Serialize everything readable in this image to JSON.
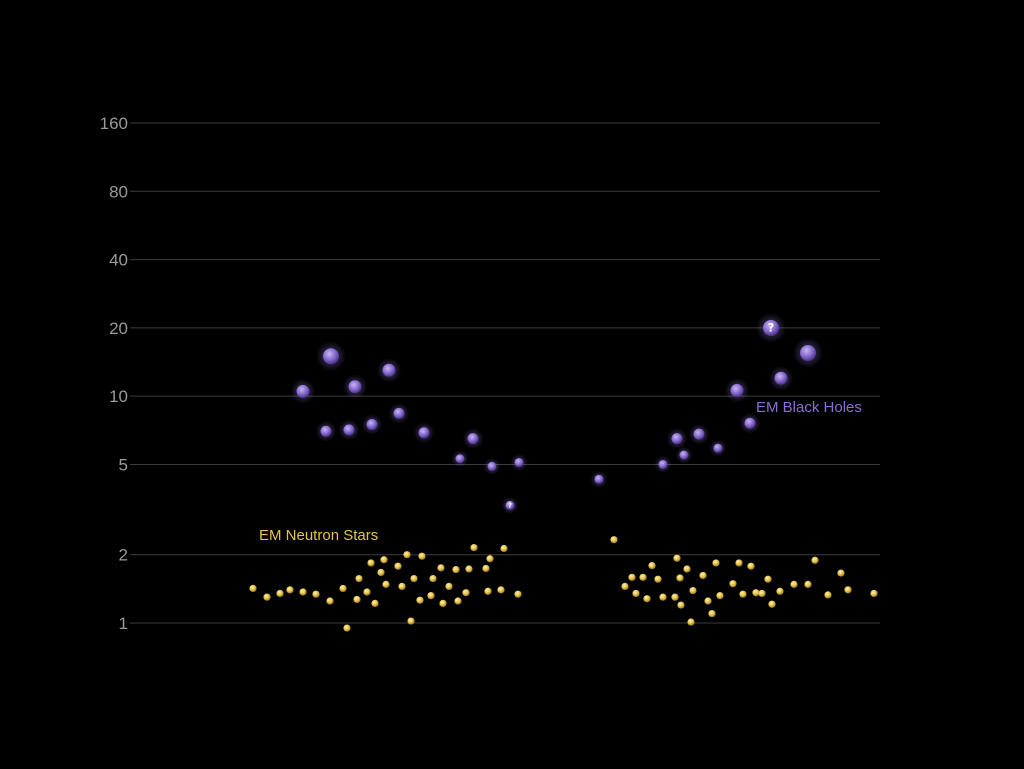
{
  "chart_data": {
    "type": "scatter",
    "title": "",
    "xlabel": "",
    "ylabel": "",
    "y_scale": "log",
    "ylim": [
      1,
      160
    ],
    "y_ticks": [
      {
        "value": 1,
        "label": "1"
      },
      {
        "value": 2,
        "label": "2"
      },
      {
        "value": 5,
        "label": "5"
      },
      {
        "value": 10,
        "label": "10"
      },
      {
        "value": 20,
        "label": "20"
      },
      {
        "value": 40,
        "label": "40"
      },
      {
        "value": 80,
        "label": "80"
      },
      {
        "value": 160,
        "label": "160"
      }
    ],
    "x_axis_labels": false,
    "grid": true,
    "colors": {
      "black_holes": "#8a6fd0",
      "neutron_stars": "#e6c24a",
      "background": "#000000"
    },
    "series": [
      {
        "name": "EM Black Holes",
        "label_text": "EM Black Holes",
        "color": "#8a6fd0",
        "points": [
          {
            "x": 303,
            "y": 10.5,
            "s": 2
          },
          {
            "x": 326,
            "y": 7.0,
            "s": 1
          },
          {
            "x": 331,
            "y": 15.0,
            "s": 3
          },
          {
            "x": 349,
            "y": 7.1,
            "s": 1
          },
          {
            "x": 355,
            "y": 11.0,
            "s": 2
          },
          {
            "x": 372,
            "y": 7.5,
            "s": 1
          },
          {
            "x": 389,
            "y": 13.0,
            "s": 2
          },
          {
            "x": 399,
            "y": 8.4,
            "s": 1
          },
          {
            "x": 424,
            "y": 6.9,
            "s": 1
          },
          {
            "x": 460,
            "y": 5.3,
            "s": 0
          },
          {
            "x": 473,
            "y": 6.5,
            "s": 1
          },
          {
            "x": 492,
            "y": 4.9,
            "s": 0
          },
          {
            "x": 510,
            "y": 3.3,
            "s": 0,
            "uncertain": true
          },
          {
            "x": 519,
            "y": 5.1,
            "s": 0
          },
          {
            "x": 599,
            "y": 4.3,
            "s": 0
          },
          {
            "x": 663,
            "y": 5.0,
            "s": 0
          },
          {
            "x": 677,
            "y": 6.5,
            "s": 1
          },
          {
            "x": 684,
            "y": 5.5,
            "s": 0
          },
          {
            "x": 699,
            "y": 6.8,
            "s": 1
          },
          {
            "x": 718,
            "y": 5.9,
            "s": 0
          },
          {
            "x": 737,
            "y": 10.6,
            "s": 2
          },
          {
            "x": 750,
            "y": 7.6,
            "s": 1
          },
          {
            "x": 771,
            "y": 20.0,
            "s": 3,
            "uncertain": true
          },
          {
            "x": 781,
            "y": 12.0,
            "s": 2
          },
          {
            "x": 808,
            "y": 15.5,
            "s": 3
          }
        ]
      },
      {
        "name": "EM Neutron Stars",
        "label_text": "EM Neutron Stars",
        "color": "#e6c24a",
        "points": [
          {
            "x": 253,
            "y": 1.42
          },
          {
            "x": 267,
            "y": 1.3
          },
          {
            "x": 280,
            "y": 1.35
          },
          {
            "x": 290,
            "y": 1.4
          },
          {
            "x": 303,
            "y": 1.37
          },
          {
            "x": 316,
            "y": 1.34
          },
          {
            "x": 330,
            "y": 1.25
          },
          {
            "x": 343,
            "y": 1.42
          },
          {
            "x": 347,
            "y": 0.95
          },
          {
            "x": 357,
            "y": 1.27
          },
          {
            "x": 359,
            "y": 1.57
          },
          {
            "x": 367,
            "y": 1.37
          },
          {
            "x": 371,
            "y": 1.84
          },
          {
            "x": 375,
            "y": 1.22
          },
          {
            "x": 381,
            "y": 1.67
          },
          {
            "x": 384,
            "y": 1.9
          },
          {
            "x": 386,
            "y": 1.48
          },
          {
            "x": 398,
            "y": 1.78
          },
          {
            "x": 402,
            "y": 1.45
          },
          {
            "x": 407,
            "y": 2.0
          },
          {
            "x": 411,
            "y": 1.02
          },
          {
            "x": 414,
            "y": 1.57
          },
          {
            "x": 420,
            "y": 1.26
          },
          {
            "x": 422,
            "y": 1.97
          },
          {
            "x": 431,
            "y": 1.32
          },
          {
            "x": 433,
            "y": 1.57
          },
          {
            "x": 441,
            "y": 1.75
          },
          {
            "x": 443,
            "y": 1.22
          },
          {
            "x": 449,
            "y": 1.45
          },
          {
            "x": 456,
            "y": 1.72
          },
          {
            "x": 458,
            "y": 1.25
          },
          {
            "x": 466,
            "y": 1.36
          },
          {
            "x": 469,
            "y": 1.73
          },
          {
            "x": 474,
            "y": 2.15
          },
          {
            "x": 486,
            "y": 1.74
          },
          {
            "x": 488,
            "y": 1.38
          },
          {
            "x": 490,
            "y": 1.92
          },
          {
            "x": 501,
            "y": 1.4
          },
          {
            "x": 504,
            "y": 2.13
          },
          {
            "x": 518,
            "y": 1.34
          },
          {
            "x": 614,
            "y": 2.33
          },
          {
            "x": 625,
            "y": 1.45
          },
          {
            "x": 632,
            "y": 1.59
          },
          {
            "x": 636,
            "y": 1.35
          },
          {
            "x": 643,
            "y": 1.59
          },
          {
            "x": 647,
            "y": 1.28
          },
          {
            "x": 652,
            "y": 1.79
          },
          {
            "x": 658,
            "y": 1.56
          },
          {
            "x": 663,
            "y": 1.3
          },
          {
            "x": 675,
            "y": 1.3
          },
          {
            "x": 677,
            "y": 1.93
          },
          {
            "x": 680,
            "y": 1.58
          },
          {
            "x": 681,
            "y": 1.2
          },
          {
            "x": 687,
            "y": 1.73
          },
          {
            "x": 691,
            "y": 1.01
          },
          {
            "x": 693,
            "y": 1.39
          },
          {
            "x": 703,
            "y": 1.62
          },
          {
            "x": 708,
            "y": 1.25
          },
          {
            "x": 712,
            "y": 1.1
          },
          {
            "x": 716,
            "y": 1.84
          },
          {
            "x": 720,
            "y": 1.32
          },
          {
            "x": 733,
            "y": 1.49
          },
          {
            "x": 739,
            "y": 1.84
          },
          {
            "x": 743,
            "y": 1.34
          },
          {
            "x": 751,
            "y": 1.78
          },
          {
            "x": 756,
            "y": 1.36
          },
          {
            "x": 762,
            "y": 1.35
          },
          {
            "x": 768,
            "y": 1.56
          },
          {
            "x": 772,
            "y": 1.21
          },
          {
            "x": 780,
            "y": 1.38
          },
          {
            "x": 794,
            "y": 1.48
          },
          {
            "x": 808,
            "y": 1.48
          },
          {
            "x": 815,
            "y": 1.89
          },
          {
            "x": 828,
            "y": 1.33
          },
          {
            "x": 841,
            "y": 1.66
          },
          {
            "x": 848,
            "y": 1.4
          },
          {
            "x": 874,
            "y": 1.35
          }
        ]
      }
    ]
  }
}
